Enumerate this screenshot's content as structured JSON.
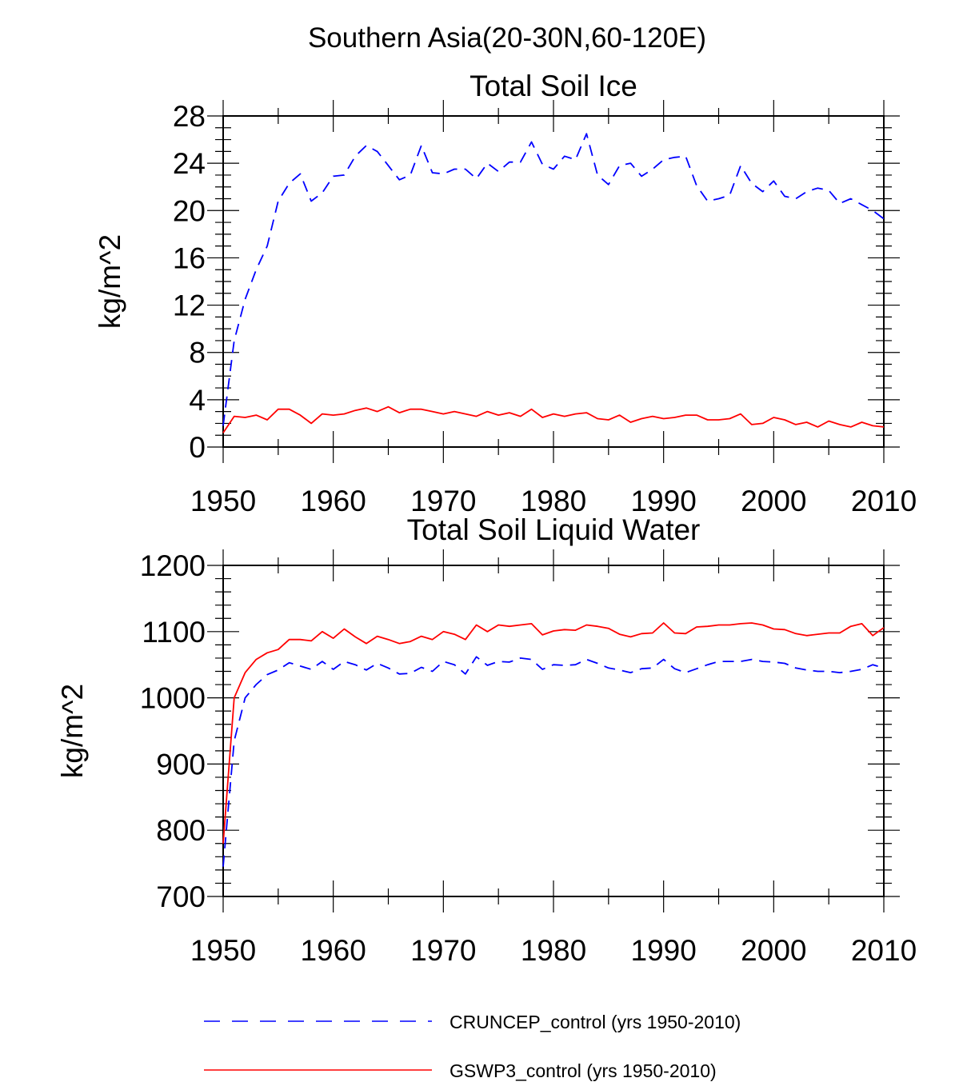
{
  "figure_title": "Southern Asia(20-30N,60-120E)",
  "chart_data": [
    {
      "type": "line",
      "title": "Total Soil Ice",
      "xlabel": "",
      "ylabel": "kg/m^2",
      "xlim": [
        1950,
        2010
      ],
      "ylim": [
        0,
        28
      ],
      "xticks": [
        1950,
        1960,
        1970,
        1980,
        1990,
        2000,
        2010
      ],
      "yticks": [
        0,
        4,
        8,
        12,
        16,
        20,
        24,
        28
      ],
      "x": [
        1950,
        1951,
        1952,
        1953,
        1954,
        1955,
        1956,
        1957,
        1958,
        1959,
        1960,
        1961,
        1962,
        1963,
        1964,
        1965,
        1966,
        1967,
        1968,
        1969,
        1970,
        1971,
        1972,
        1973,
        1974,
        1975,
        1976,
        1977,
        1978,
        1979,
        1980,
        1981,
        1982,
        1983,
        1984,
        1985,
        1986,
        1987,
        1988,
        1989,
        1990,
        1991,
        1992,
        1993,
        1994,
        1995,
        1996,
        1997,
        1998,
        1999,
        2000,
        2001,
        2002,
        2003,
        2004,
        2005,
        2006,
        2007,
        2008,
        2009,
        2010
      ],
      "series": [
        {
          "name": "CRUNCEP_control (yrs 1950-2010)",
          "color": "#0000ff",
          "dash": "dashed",
          "values": [
            1.8,
            9.0,
            12.5,
            15.0,
            17.0,
            20.8,
            22.3,
            23.1,
            20.8,
            21.5,
            22.9,
            23.0,
            24.6,
            25.5,
            25.0,
            23.8,
            22.6,
            23.0,
            25.5,
            23.2,
            23.1,
            23.5,
            23.5,
            22.7,
            24.0,
            23.3,
            24.1,
            24.1,
            25.8,
            23.9,
            23.5,
            24.6,
            24.3,
            26.5,
            23.0,
            22.2,
            23.8,
            24.0,
            22.9,
            23.5,
            24.3,
            24.5,
            24.6,
            22.1,
            20.8,
            21.0,
            21.3,
            23.8,
            22.3,
            21.6,
            22.5,
            21.2,
            21.0,
            21.6,
            21.9,
            21.7,
            20.6,
            21.0,
            20.5,
            20.0,
            19.3
          ]
        },
        {
          "name": "GSWP3_control (yrs 1950-2010)",
          "color": "#ff0000",
          "dash": "solid",
          "values": [
            1.2,
            2.6,
            2.5,
            2.7,
            2.3,
            3.2,
            3.2,
            2.7,
            2.0,
            2.8,
            2.7,
            2.8,
            3.1,
            3.3,
            3.0,
            3.4,
            2.9,
            3.2,
            3.2,
            3.0,
            2.8,
            3.0,
            2.8,
            2.6,
            3.0,
            2.7,
            2.9,
            2.6,
            3.2,
            2.5,
            2.8,
            2.6,
            2.8,
            2.9,
            2.4,
            2.3,
            2.7,
            2.1,
            2.4,
            2.6,
            2.4,
            2.5,
            2.7,
            2.7,
            2.3,
            2.3,
            2.4,
            2.8,
            1.9,
            2.0,
            2.5,
            2.3,
            1.9,
            2.1,
            1.7,
            2.2,
            1.9,
            1.7,
            2.1,
            1.8,
            1.7
          ]
        }
      ]
    },
    {
      "type": "line",
      "title": "Total Soil Liquid Water",
      "xlabel": "",
      "ylabel": "kg/m^2",
      "xlim": [
        1950,
        2010
      ],
      "ylim": [
        700,
        1200
      ],
      "xticks": [
        1950,
        1960,
        1970,
        1980,
        1990,
        2000,
        2010
      ],
      "yticks": [
        700,
        800,
        900,
        1000,
        1100,
        1200
      ],
      "x": [
        1950,
        1951,
        1952,
        1953,
        1954,
        1955,
        1956,
        1957,
        1958,
        1959,
        1960,
        1961,
        1962,
        1963,
        1964,
        1965,
        1966,
        1967,
        1968,
        1969,
        1970,
        1971,
        1972,
        1973,
        1974,
        1975,
        1976,
        1977,
        1978,
        1979,
        1980,
        1981,
        1982,
        1983,
        1984,
        1985,
        1986,
        1987,
        1988,
        1989,
        1990,
        1991,
        1992,
        1993,
        1994,
        1995,
        1996,
        1997,
        1998,
        1999,
        2000,
        2001,
        2002,
        2003,
        2004,
        2005,
        2006,
        2007,
        2008,
        2009,
        2010
      ],
      "series": [
        {
          "name": "CRUNCEP_control (yrs 1950-2010)",
          "color": "#0000ff",
          "dash": "dashed",
          "values": [
            745,
            935,
            1000,
            1020,
            1035,
            1042,
            1053,
            1048,
            1043,
            1055,
            1043,
            1055,
            1050,
            1042,
            1052,
            1045,
            1036,
            1037,
            1046,
            1040,
            1055,
            1050,
            1036,
            1062,
            1049,
            1055,
            1054,
            1060,
            1058,
            1043,
            1050,
            1049,
            1050,
            1058,
            1052,
            1045,
            1042,
            1038,
            1044,
            1045,
            1058,
            1044,
            1038,
            1044,
            1050,
            1055,
            1055,
            1055,
            1058,
            1055,
            1054,
            1052,
            1045,
            1042,
            1040,
            1040,
            1038,
            1040,
            1043,
            1050,
            1045
          ]
        },
        {
          "name": "GSWP3_control (yrs 1950-2010)",
          "color": "#ff0000",
          "dash": "solid",
          "values": [
            780,
            1000,
            1038,
            1058,
            1068,
            1073,
            1088,
            1088,
            1086,
            1100,
            1090,
            1104,
            1092,
            1082,
            1093,
            1088,
            1082,
            1085,
            1093,
            1088,
            1100,
            1096,
            1088,
            1110,
            1100,
            1110,
            1108,
            1110,
            1112,
            1095,
            1101,
            1103,
            1102,
            1110,
            1108,
            1105,
            1096,
            1092,
            1097,
            1098,
            1113,
            1098,
            1097,
            1107,
            1108,
            1110,
            1110,
            1112,
            1113,
            1110,
            1104,
            1103,
            1097,
            1094,
            1096,
            1098,
            1098,
            1108,
            1112,
            1094,
            1106
          ]
        }
      ]
    }
  ],
  "legend": [
    {
      "label": "CRUNCEP_control (yrs 1950-2010)",
      "color": "#0000ff",
      "dash": "dashed"
    },
    {
      "label": "GSWP3_control (yrs 1950-2010)",
      "color": "#ff0000",
      "dash": "solid"
    }
  ]
}
